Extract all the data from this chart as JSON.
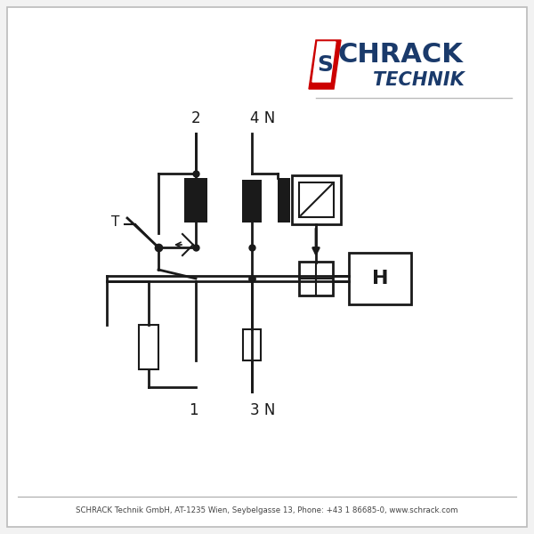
{
  "bg": "#f2f2f2",
  "white": "#ffffff",
  "lc": "#1a1a1a",
  "lw": 2.0,
  "lw_thick": 2.5,
  "footer": "SCHRACK Technik GmbH, AT-1235 Wien, Seybelgasse 13, Phone: +43 1 86685-0, www.schrack.com",
  "schrack_blue": "#1a3a6b",
  "schrack_red": "#cc0000",
  "label_2": "2",
  "label_4N": "4 N",
  "label_1": "1",
  "label_3N": "3 N",
  "label_H": "H",
  "label_T": "T"
}
